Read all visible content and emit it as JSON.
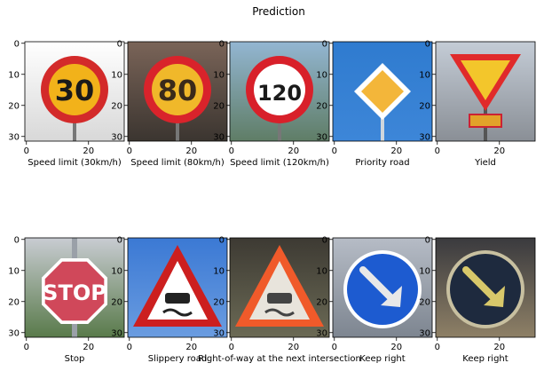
{
  "chart_data": {
    "type": "image_grid",
    "title": "Prediction",
    "rows": 2,
    "cols": 5,
    "axis": {
      "xlim": [
        -0.5,
        31.5
      ],
      "ylim": [
        31.5,
        -0.5
      ],
      "xticks": [
        0,
        20
      ],
      "yticks": [
        0,
        10,
        20,
        30
      ]
    },
    "panels": [
      {
        "label": "Speed limit (30km/h)",
        "sign": "speed",
        "text": "30",
        "colors": {
          "bg1": "#ffffff",
          "bg2": "#d8d8d8",
          "ring": "#d32a2a",
          "face": "#f2b21a",
          "ink": "#1a1a1a"
        }
      },
      {
        "label": "Speed limit (80km/h)",
        "sign": "speed",
        "text": "80",
        "colors": {
          "bg1": "#7a6458",
          "bg2": "#3b3530",
          "ring": "#d9232b",
          "face": "#f0b82a",
          "ink": "#3a2a1a"
        }
      },
      {
        "label": "Speed limit (120km/h)",
        "sign": "speed",
        "text": "120",
        "colors": {
          "bg1": "#93b6d2",
          "bg2": "#5f7d66",
          "ring": "#d8202a",
          "face": "#ffffff",
          "ink": "#1a1a1a"
        }
      },
      {
        "label": "Priority road",
        "sign": "diamond",
        "text": "",
        "colors": {
          "bg1": "#2f7bcf",
          "bg2": "#3d86d8",
          "ring": "#ffffff",
          "face": "#f3b63a",
          "ink": "#000000"
        }
      },
      {
        "label": "Yield",
        "sign": "yield",
        "text": "",
        "colors": {
          "bg1": "#c4ccd6",
          "bg2": "#8a8f96",
          "ring": "#e02a2a",
          "face": "#f3c62b",
          "ink": "#000000"
        }
      },
      {
        "label": "Stop",
        "sign": "stop",
        "text": "STOP",
        "colors": {
          "bg1": "#c9ccd2",
          "bg2": "#597a4a",
          "ring": "#ffffff",
          "face": "#d0485a",
          "ink": "#ffffff"
        }
      },
      {
        "label": "Slippery road",
        "sign": "warning",
        "text": "",
        "colors": {
          "bg1": "#3b79d4",
          "bg2": "#6a9ce0",
          "ring": "#cc1f1f",
          "face": "#ffffff",
          "ink": "#222222"
        }
      },
      {
        "label": "Right-of-way at the next intersection",
        "sign": "warning",
        "text": "",
        "colors": {
          "bg1": "#3d3a33",
          "bg2": "#6b6a55",
          "ring": "#f05a2a",
          "face": "#e8e4dc",
          "ink": "#444444"
        }
      },
      {
        "label": "Keep right",
        "sign": "keepright",
        "text": "",
        "colors": {
          "bg1": "#b6bcc6",
          "bg2": "#7d8590",
          "ring": "#ffffff",
          "face": "#1d5bd0",
          "ink": "#e8e8e8"
        }
      },
      {
        "label": "Keep right",
        "sign": "keepright",
        "text": "",
        "colors": {
          "bg1": "#3a3a3e",
          "bg2": "#8e8066",
          "ring": "#c8c0a0",
          "face": "#1e2a3e",
          "ink": "#d8c86a"
        }
      }
    ]
  }
}
